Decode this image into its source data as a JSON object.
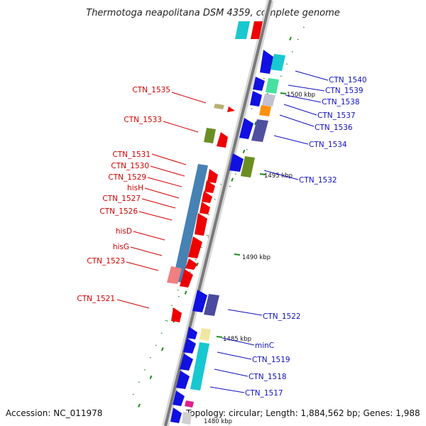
{
  "title": "Thermotoga neapolitana DSM 4359, complete genome",
  "footer": {
    "accession": "Accession: NC_011978",
    "summary": "Topology: circular; Length: 1,884,562 bp; Genes: 1,988"
  },
  "kbp_labels": [
    "1500 kbp",
    "1495 kbp",
    "1490 kbp",
    "1485 kbp",
    "1480 kbp"
  ],
  "left_labels": [
    "CTN_1535",
    "CTN_1533",
    "CTN_1531",
    "CTN_1530",
    "CTN_1529",
    "hisH",
    "CTN_1527",
    "CTN_1526",
    "hisD",
    "hisG",
    "CTN_1523",
    "CTN_1521"
  ],
  "right_labels": [
    "CTN_1540",
    "CTN_1539",
    "CTN_1538",
    "CTN_1537",
    "CTN_1536",
    "CTN_1534",
    "CTN_1532",
    "CTN_1522",
    "minC",
    "CTN_1519",
    "CTN_1518",
    "CTN_1517"
  ],
  "colors": {
    "backbone": "#7a7a7a",
    "forward_genes": "#1010e0",
    "reverse_genes": "#ee0000",
    "left_label": "#d00000",
    "right_label": "#1010c0",
    "scale_ticks": "#1e8c1e"
  }
}
